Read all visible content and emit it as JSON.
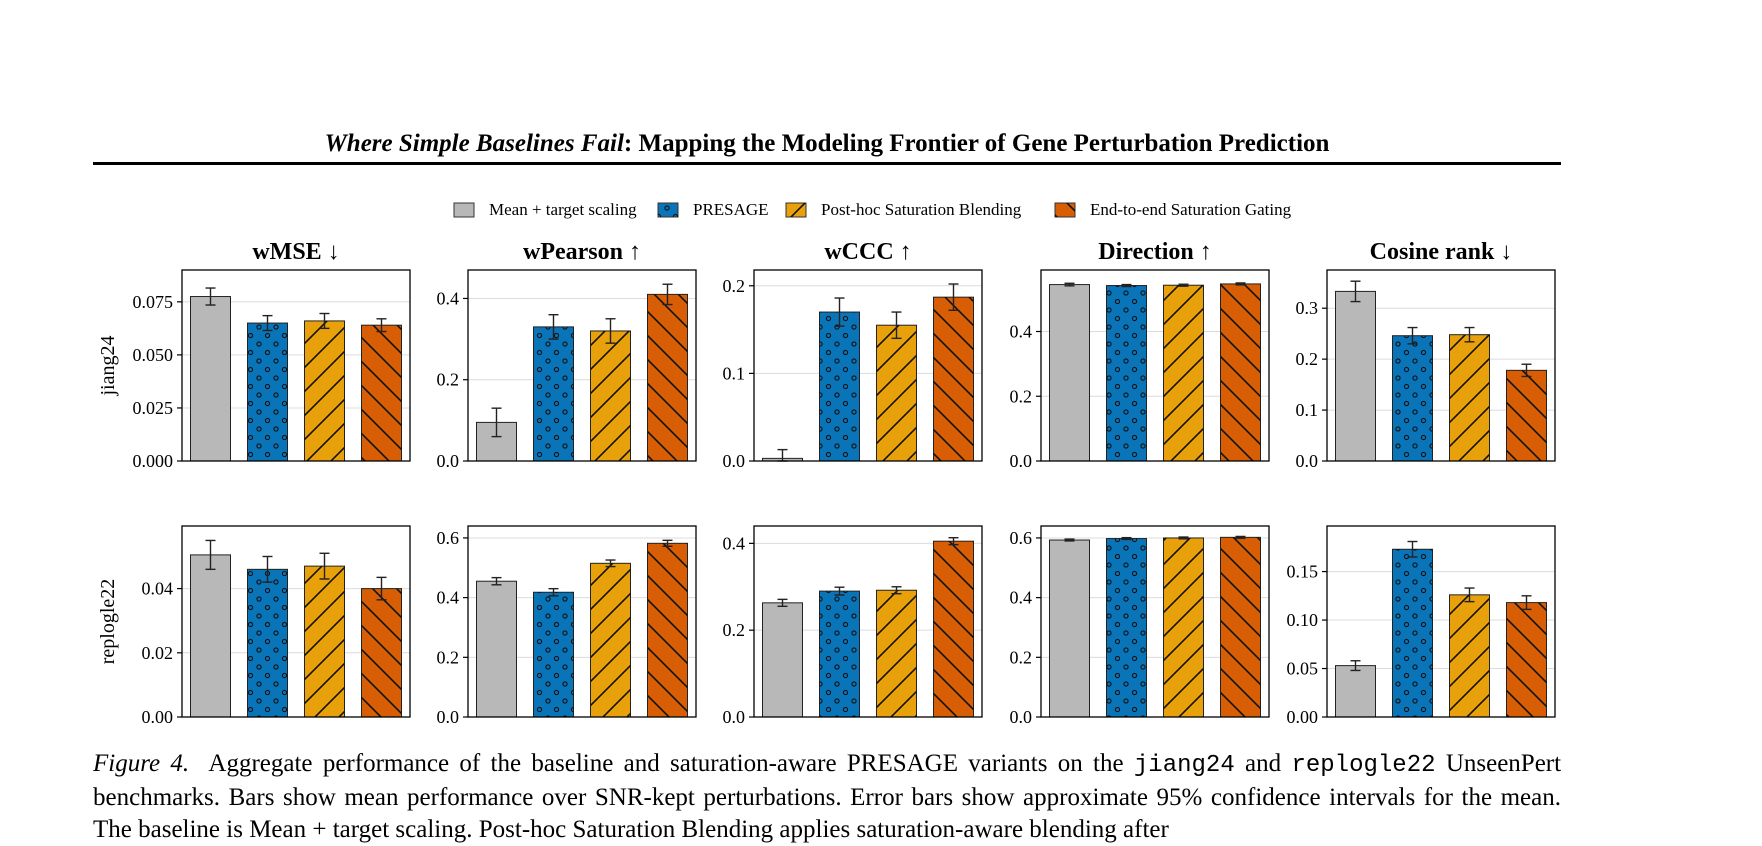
{
  "header": {
    "title_italic": "Where Simple Baselines Fail",
    "title_rest": ": Mapping the Modeling Frontier of Gene Perturbation Prediction"
  },
  "legend": [
    {
      "label": "Mean + target scaling",
      "color": "#b8b8b8",
      "pattern": "none"
    },
    {
      "label": "PRESAGE",
      "color": "#0a74b8",
      "pattern": "dots"
    },
    {
      "label": "Post-hoc Saturation Blending",
      "color": "#e8a10a",
      "pattern": "forward-hatch"
    },
    {
      "label": "End-to-end Saturation Gating",
      "color": "#d75e05",
      "pattern": "back-hatch"
    }
  ],
  "chart_data": {
    "type": "bar",
    "grid": true,
    "legend_position": "top-center",
    "series": [
      "Mean + target scaling",
      "PRESAGE",
      "Post-hoc Saturation Blending",
      "End-to-end Saturation Gating"
    ],
    "columns": [
      "wMSE ↓",
      "wPearson ↑",
      "wCCC ↑",
      "Direction ↑",
      "Cosine rank ↓"
    ],
    "rows": [
      {
        "label": "jiang24",
        "panels": [
          {
            "title": "wMSE ↓",
            "ylim": [
              0,
              0.09
            ],
            "ticks": [
              "0.000",
              "0.025",
              "0.050",
              "0.075"
            ],
            "tick_values": [
              0,
              0.025,
              0.05,
              0.075
            ],
            "values": [
              0.0775,
              0.065,
              0.066,
              0.064
            ],
            "errors": [
              0.004,
              0.0035,
              0.0035,
              0.003
            ]
          },
          {
            "title": "wPearson ↑",
            "ylim": [
              0,
              0.47
            ],
            "ticks": [
              "0.0",
              "0.2",
              "0.4"
            ],
            "tick_values": [
              0,
              0.2,
              0.4
            ],
            "values": [
              0.095,
              0.33,
              0.32,
              0.41
            ],
            "errors": [
              0.035,
              0.03,
              0.03,
              0.025
            ]
          },
          {
            "title": "wCCC ↑",
            "ylim": [
              0,
              0.218
            ],
            "ticks": [
              "0.0",
              "0.1",
              "0.2"
            ],
            "tick_values": [
              0,
              0.1,
              0.2
            ],
            "values": [
              0.003,
              0.17,
              0.155,
              0.187
            ],
            "errors": [
              0.01,
              0.016,
              0.015,
              0.015
            ]
          },
          {
            "title": "Direction ↑",
            "ylim": [
              0,
              0.59
            ],
            "ticks": [
              "0.0",
              "0.2",
              "0.4"
            ],
            "tick_values": [
              0,
              0.2,
              0.4
            ],
            "values": [
              0.545,
              0.542,
              0.543,
              0.547
            ],
            "errors": [
              0.004,
              0.003,
              0.003,
              0.003
            ]
          },
          {
            "title": "Cosine rank ↓",
            "ylim": [
              0,
              0.375
            ],
            "ticks": [
              "0.0",
              "0.1",
              "0.2",
              "0.3"
            ],
            "tick_values": [
              0,
              0.1,
              0.2,
              0.3
            ],
            "values": [
              0.333,
              0.246,
              0.248,
              0.178
            ],
            "errors": [
              0.02,
              0.016,
              0.014,
              0.012
            ]
          }
        ]
      },
      {
        "label": "replogle22",
        "panels": [
          {
            "title": "wMSE ↓",
            "ylim": [
              0,
              0.0595
            ],
            "ticks": [
              "0.00",
              "0.02",
              "0.04"
            ],
            "tick_values": [
              0,
              0.02,
              0.04
            ],
            "values": [
              0.0505,
              0.046,
              0.047,
              0.04
            ],
            "errors": [
              0.0045,
              0.004,
              0.004,
              0.0035
            ]
          },
          {
            "title": "wPearson ↑",
            "ylim": [
              0,
              0.64
            ],
            "ticks": [
              "0.0",
              "0.2",
              "0.4",
              "0.6"
            ],
            "tick_values": [
              0,
              0.2,
              0.4,
              0.6
            ],
            "values": [
              0.455,
              0.418,
              0.515,
              0.582
            ],
            "errors": [
              0.012,
              0.012,
              0.011,
              0.01
            ]
          },
          {
            "title": "wCCC ↑",
            "ylim": [
              0,
              0.44
            ],
            "ticks": [
              "0.0",
              "0.2",
              "0.4"
            ],
            "tick_values": [
              0,
              0.2,
              0.4
            ],
            "values": [
              0.263,
              0.29,
              0.292,
              0.405
            ],
            "errors": [
              0.008,
              0.009,
              0.008,
              0.008
            ]
          },
          {
            "title": "Direction ↑",
            "ylim": [
              0,
              0.64
            ],
            "ticks": [
              "0.0",
              "0.2",
              "0.4",
              "0.6"
            ],
            "tick_values": [
              0,
              0.2,
              0.4,
              0.6
            ],
            "values": [
              0.593,
              0.598,
              0.6,
              0.602
            ],
            "errors": [
              0.003,
              0.003,
              0.003,
              0.003
            ]
          },
          {
            "title": "Cosine rank ↓",
            "ylim": [
              0,
              0.197
            ],
            "ticks": [
              "0.00",
              "0.05",
              "0.10",
              "0.15"
            ],
            "tick_values": [
              0,
              0.05,
              0.1,
              0.15
            ],
            "values": [
              0.053,
              0.173,
              0.126,
              0.118
            ],
            "errors": [
              0.005,
              0.008,
              0.007,
              0.007
            ]
          }
        ]
      }
    ]
  },
  "caption": {
    "label": "Figure 4.",
    "text_a": "Aggregate performance of the baseline and saturation-aware PRESAGE variants on the",
    "mono_1": "jiang24",
    "text_and": "and",
    "mono_2": "replogle22",
    "text_b": "UnseenPert benchmarks. Bars show mean performance over SNR-kept perturbations. Error bars show approximate 95% confidence",
    "text_c": "intervals for the mean. The baseline is Mean + target scaling. Post-hoc Saturation Blending applies saturation-aware blending after"
  }
}
